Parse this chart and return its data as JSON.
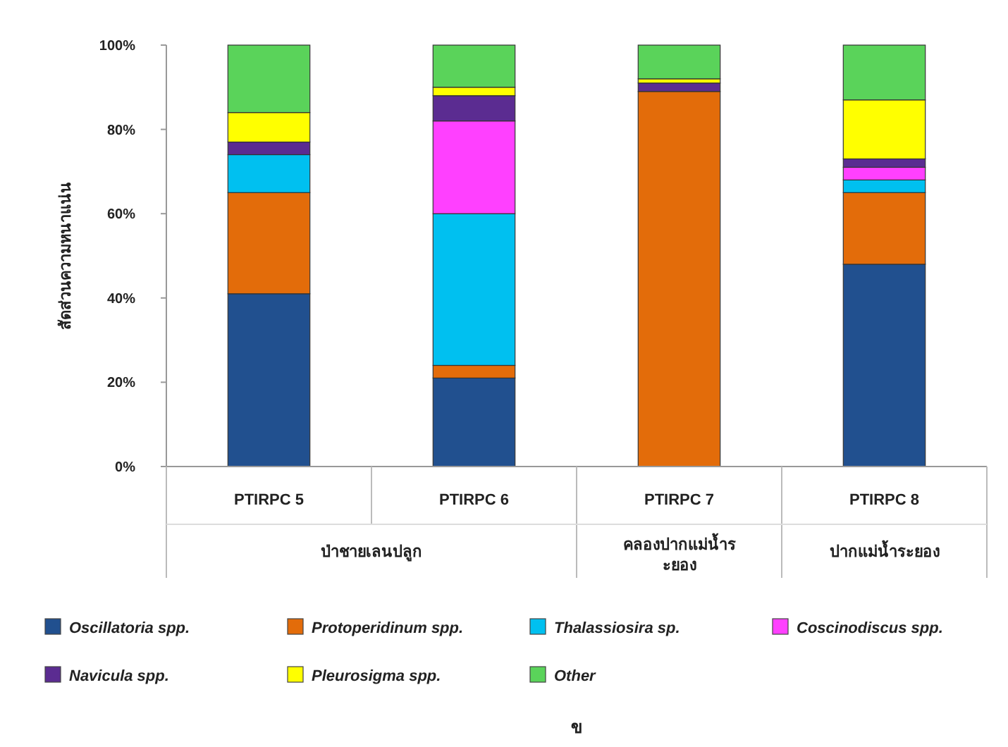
{
  "chart_data": {
    "type": "bar",
    "stacked": true,
    "ylabel": "สัดส่วนความหนาแน่น",
    "categories": [
      "PTIRPC 5",
      "PTIRPC 6",
      "PTIRPC 7",
      "PTIRPC 8"
    ],
    "series": [
      {
        "name": "Oscillatoria spp.",
        "color": "#21508f",
        "values": [
          41,
          21,
          0,
          48
        ]
      },
      {
        "name": "Protoperidinum spp.",
        "color": "#e36c0a",
        "values": [
          24,
          3,
          89,
          17
        ]
      },
      {
        "name": "Thalassiosira sp.",
        "color": "#00c0f0",
        "values": [
          9,
          36,
          0,
          3
        ]
      },
      {
        "name": "Coscinodiscus spp.",
        "color": "#ff40ff",
        "values": [
          0,
          22,
          0,
          3
        ]
      },
      {
        "name": "Navicula spp.",
        "color": "#5b2c91",
        "values": [
          3,
          6,
          2,
          2
        ]
      },
      {
        "name": "Pleurosigma spp.",
        "color": "#ffff00",
        "values": [
          7,
          2,
          1,
          14
        ]
      },
      {
        "name": "Other",
        "color": "#5ad35a",
        "values": [
          16,
          10,
          8,
          13
        ]
      }
    ],
    "ylim": [
      0,
      100
    ],
    "yticks": [
      {
        "value": 0,
        "label": "0%"
      },
      {
        "value": 20,
        "label": "20%"
      },
      {
        "value": 40,
        "label": "40%"
      },
      {
        "value": 60,
        "label": "60%"
      },
      {
        "value": 80,
        "label": "80%"
      },
      {
        "value": 100,
        "label": "100%"
      }
    ],
    "grid": false,
    "legend": "bottom",
    "annotations": [
      "ป่าชายเลนปลูก",
      "คลองปากแม่น้ำระยอง",
      "ปากแม่น้ำระยอง",
      "ข"
    ]
  }
}
